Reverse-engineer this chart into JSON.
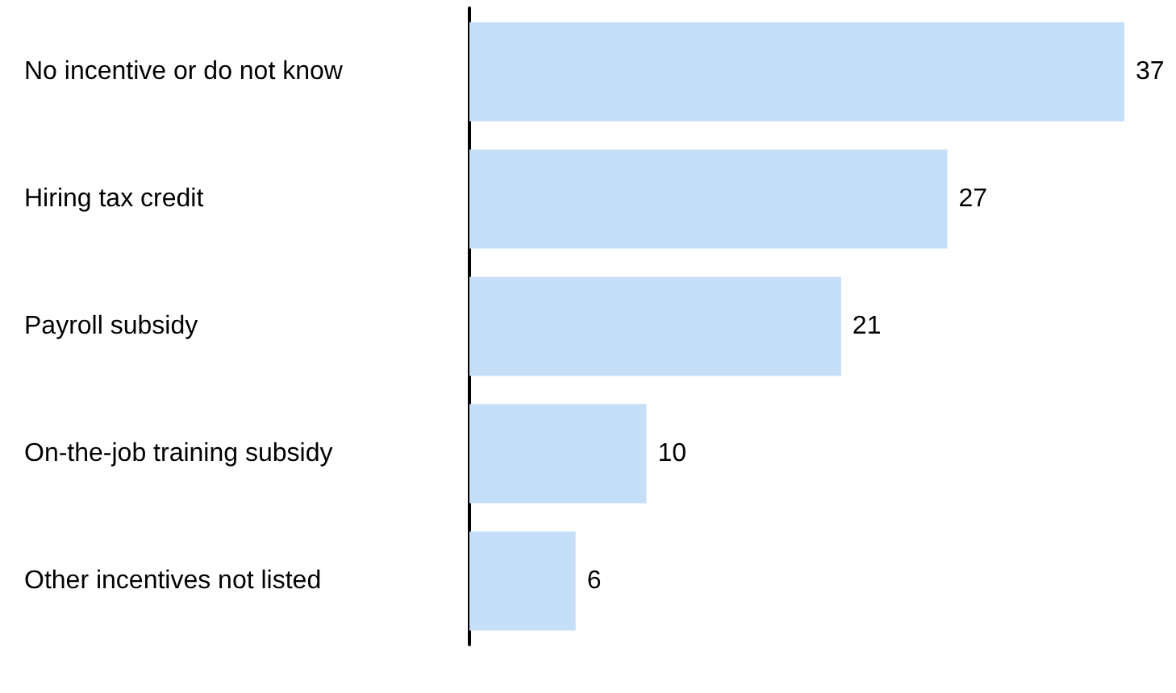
{
  "chart_data": {
    "type": "bar",
    "orientation": "horizontal",
    "categories": [
      "No incentive or do not know",
      "Hiring tax credit",
      "Payroll subsidy",
      "On-the-job training subsidy",
      "Other incentives not listed"
    ],
    "values": [
      37,
      27,
      21,
      10,
      6
    ],
    "color": "#c6dff9",
    "data_labels": true
  }
}
